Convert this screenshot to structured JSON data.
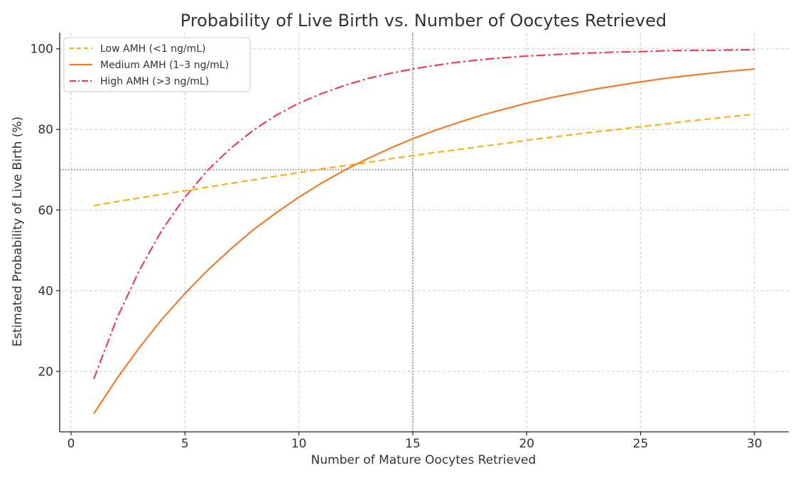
{
  "chart_data": {
    "type": "line",
    "title": "Probability of Live Birth vs. Number of Oocytes Retrieved",
    "xlabel": "Number of Mature Oocytes Retrieved",
    "ylabel": "Estimated Probability of Live Birth (%)",
    "xlim": [
      -0.5,
      31.5
    ],
    "ylim": [
      5,
      104
    ],
    "xticks": [
      0,
      5,
      10,
      15,
      20,
      25,
      30
    ],
    "yticks": [
      20,
      40,
      60,
      80,
      100
    ],
    "grid": true,
    "legend": "top-left",
    "reference_lines": [
      {
        "orientation": "vertical",
        "value": 15
      },
      {
        "orientation": "horizontal",
        "value": 70
      }
    ],
    "x": [
      1,
      2,
      3,
      4,
      5,
      6,
      7,
      8,
      9,
      10,
      11,
      12,
      13,
      14,
      15,
      16,
      17,
      18,
      19,
      20,
      21,
      22,
      23,
      24,
      25,
      26,
      27,
      28,
      29,
      30
    ],
    "series": [
      {
        "name": "Low AMH (<1 ng/mL)",
        "color": "#f5b21b",
        "style": "dashed",
        "values": [
          61.1,
          62.1,
          63.0,
          63.9,
          64.8,
          65.7,
          66.6,
          67.5,
          68.4,
          69.3,
          70.2,
          71.0,
          71.8,
          72.7,
          73.5,
          74.3,
          75.0,
          75.8,
          76.5,
          77.3,
          78.0,
          78.7,
          79.4,
          80.0,
          80.7,
          81.3,
          82.0,
          82.6,
          83.2,
          83.8
        ]
      },
      {
        "name": "Medium AMH (1–3 ng/mL)",
        "color": "#f07a2a",
        "style": "solid",
        "values": [
          9.5,
          18.1,
          25.9,
          33.0,
          39.3,
          45.1,
          50.3,
          55.1,
          59.3,
          63.2,
          66.7,
          69.9,
          72.7,
          75.3,
          77.7,
          79.8,
          81.7,
          83.5,
          85.0,
          86.5,
          87.8,
          88.9,
          90.0,
          90.9,
          91.8,
          92.6,
          93.3,
          93.9,
          94.5,
          95.0
        ]
      },
      {
        "name": "High AMH (>3 ng/mL)",
        "color": "#e83e5a",
        "style": "dashdot",
        "values": [
          18.1,
          33.0,
          45.1,
          55.1,
          63.2,
          69.9,
          75.3,
          79.8,
          83.5,
          86.5,
          88.9,
          90.9,
          92.6,
          93.9,
          95.0,
          95.9,
          96.7,
          97.3,
          97.8,
          98.2,
          98.5,
          98.8,
          99.0,
          99.2,
          99.3,
          99.5,
          99.6,
          99.6,
          99.7,
          99.8
        ]
      }
    ]
  }
}
